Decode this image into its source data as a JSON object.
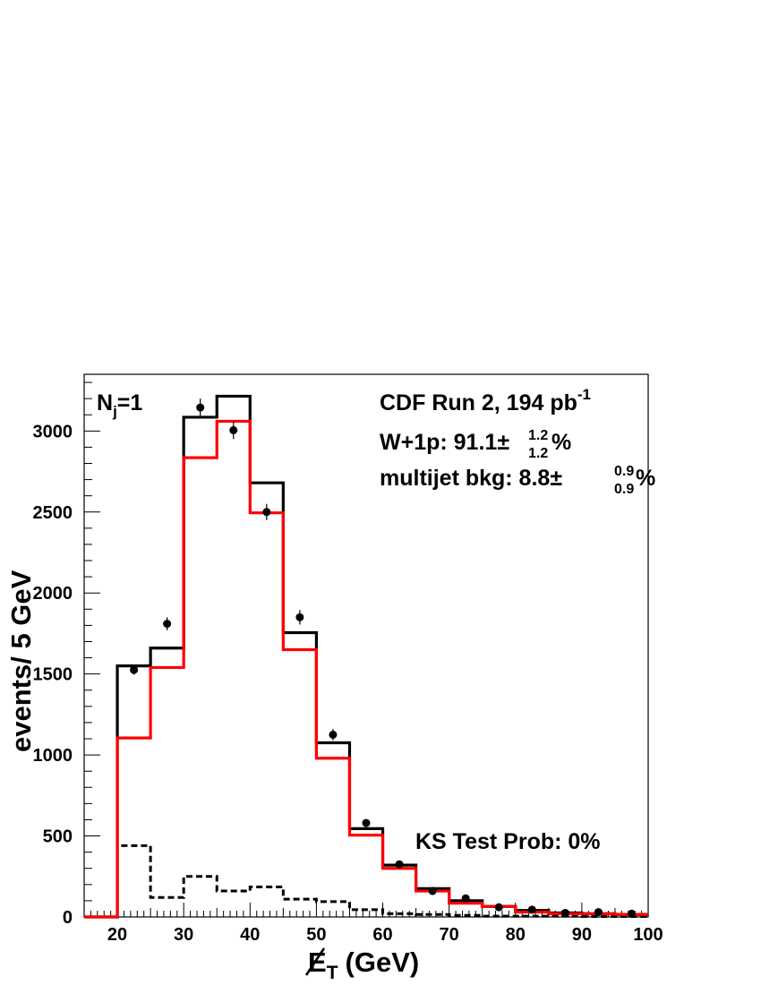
{
  "chart_data": {
    "type": "histogram",
    "xlabel": {
      "main": "E",
      "sub": "T",
      "unit": "(GeV)"
    },
    "ylabel": "events/ 5 GeV",
    "xlim": [
      15,
      100
    ],
    "ylim": [
      0,
      3350
    ],
    "x_ticks": [
      20,
      30,
      40,
      50,
      60,
      70,
      80,
      90,
      100
    ],
    "y_ticks": [
      0,
      500,
      1000,
      1500,
      2000,
      2500,
      3000
    ],
    "bin_edges": [
      15,
      20,
      25,
      30,
      35,
      40,
      45,
      50,
      55,
      60,
      65,
      70,
      75,
      80,
      85,
      90,
      95,
      100
    ],
    "series": [
      {
        "color": "#000000",
        "style": "solid",
        "values": [
          0,
          1550,
          1660,
          3085,
          3215,
          2680,
          1755,
          1075,
          545,
          320,
          175,
          100,
          65,
          40,
          25,
          20,
          15
        ]
      },
      {
        "color": "#ff0000",
        "style": "solid",
        "values": [
          0,
          1105,
          1540,
          2835,
          3060,
          2495,
          1650,
          980,
          505,
          300,
          160,
          85,
          65,
          30,
          20,
          20,
          15
        ]
      },
      {
        "color": "#000000",
        "style": "dashed",
        "values": [
          0,
          440,
          120,
          250,
          160,
          185,
          110,
          95,
          45,
          20,
          15,
          10,
          5,
          5,
          5,
          3,
          3
        ]
      }
    ],
    "points": {
      "x": [
        22.5,
        27.5,
        32.5,
        37.5,
        42.5,
        47.5,
        52.5,
        57.5,
        62.5,
        67.5,
        72.5,
        77.5,
        82.5,
        87.5,
        92.5,
        97.5
      ],
      "y": [
        1525,
        1810,
        3145,
        3005,
        2500,
        1850,
        1125,
        580,
        325,
        160,
        115,
        60,
        45,
        25,
        30,
        20
      ],
      "err": [
        30,
        40,
        55,
        55,
        50,
        45,
        35,
        25,
        20,
        15,
        12,
        10,
        8,
        6,
        6,
        5
      ]
    },
    "annotations": {
      "nj": {
        "base": "N",
        "sub": "j",
        "rest": "=1"
      },
      "run": {
        "text": "CDF Run 2, 194 pb",
        "sup": "-1"
      },
      "w1p": {
        "text": "W+1p: 91.1",
        "pm": "±",
        "up": "1.2",
        "down": "1.2",
        "unit": "%"
      },
      "multijet": {
        "text": "multijet bkg: 8.8",
        "pm": "±",
        "up": "0.9",
        "down": "0.9",
        "unit": "%"
      },
      "ks": "KS Test Prob: 0%"
    }
  }
}
